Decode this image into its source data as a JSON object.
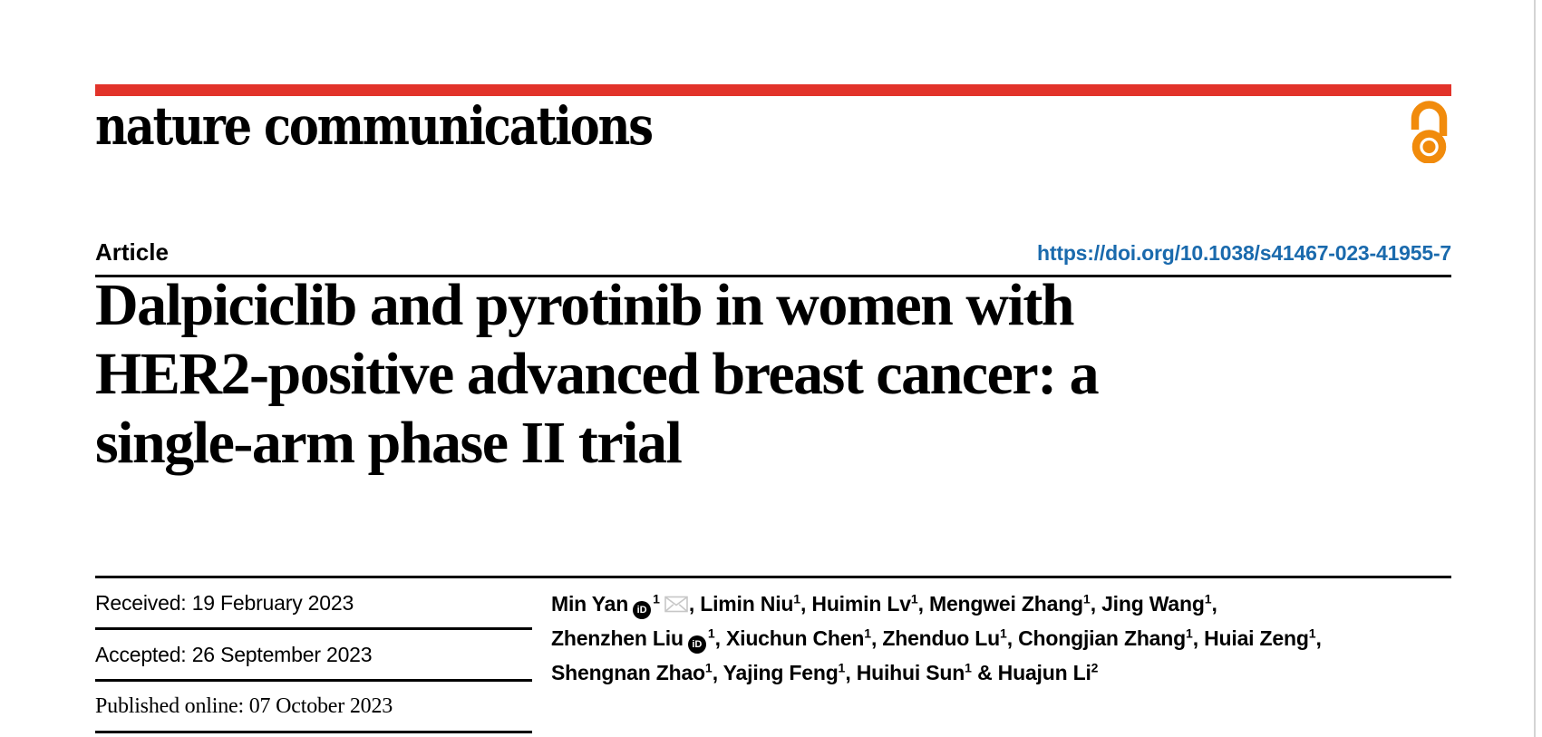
{
  "journal": {
    "name": "nature communications",
    "brand_bar_color": "#e2332a"
  },
  "icons": {
    "open_access": "open-access-padlock",
    "orcid": "orcid-id-badge",
    "orcid_label": "iD",
    "email": "envelope"
  },
  "article": {
    "type": "Article",
    "doi": "https://doi.org/10.1038/s41467-023-41955-7",
    "title_lines": [
      "Dalpiciclib and pyrotinib in women with",
      "HER2-positive advanced breast cancer: a",
      "single-arm phase II trial"
    ]
  },
  "history": [
    {
      "label": "Received:",
      "value": "19 February 2023"
    },
    {
      "label": "Accepted:",
      "value": "26 September 2023"
    },
    {
      "label": "Published online:",
      "value": "07 October 2023"
    }
  ],
  "authors": {
    "lines": [
      [
        {
          "t": "text",
          "v": "Min Yan"
        },
        {
          "t": "orcid"
        },
        {
          "t": "sup",
          "v": "1"
        },
        {
          "t": "mail"
        },
        {
          "t": "text",
          "v": ", Limin Niu"
        },
        {
          "t": "sup",
          "v": "1"
        },
        {
          "t": "text",
          "v": ", Huimin Lv"
        },
        {
          "t": "sup",
          "v": "1"
        },
        {
          "t": "text",
          "v": ", Mengwei Zhang"
        },
        {
          "t": "sup",
          "v": "1"
        },
        {
          "t": "text",
          "v": ", Jing Wang"
        },
        {
          "t": "sup",
          "v": "1"
        },
        {
          "t": "text",
          "v": ","
        }
      ],
      [
        {
          "t": "text",
          "v": "Zhenzhen Liu"
        },
        {
          "t": "orcid"
        },
        {
          "t": "sup",
          "v": "1"
        },
        {
          "t": "text",
          "v": ", Xiuchun Chen"
        },
        {
          "t": "sup",
          "v": "1"
        },
        {
          "t": "text",
          "v": ", Zhenduo Lu"
        },
        {
          "t": "sup",
          "v": "1"
        },
        {
          "t": "text",
          "v": ", Chongjian Zhang"
        },
        {
          "t": "sup",
          "v": "1"
        },
        {
          "t": "text",
          "v": ", Huiai Zeng"
        },
        {
          "t": "sup",
          "v": "1"
        },
        {
          "t": "text",
          "v": ","
        }
      ],
      [
        {
          "t": "text",
          "v": "Shengnan Zhao"
        },
        {
          "t": "sup",
          "v": "1"
        },
        {
          "t": "text",
          "v": ", Yajing Feng"
        },
        {
          "t": "sup",
          "v": "1"
        },
        {
          "t": "text",
          "v": ", Huihui Sun"
        },
        {
          "t": "sup",
          "v": "1"
        },
        {
          "t": "text",
          "v": " & Huajun Li"
        },
        {
          "t": "sup",
          "v": "2"
        }
      ]
    ]
  },
  "colors": {
    "brand_bar": "#e2332a",
    "open_access_orange": "#f18b0c",
    "doi_blue": "#1a6aad",
    "text": "#000000",
    "envelope_gray": "#c7c7c7",
    "page_edge": "#d4d4d4"
  }
}
